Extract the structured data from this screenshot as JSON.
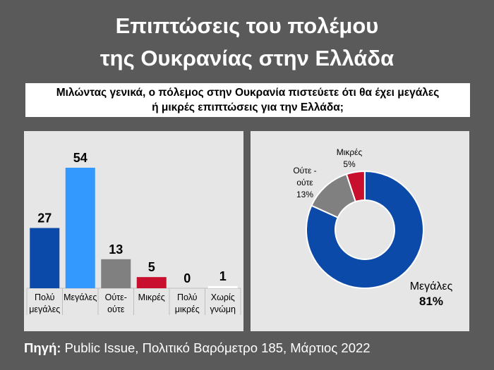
{
  "title_line1": "Επιπτώσεις του πολέμου",
  "title_line2": "της Ουκρανίας στην Ελλάδα",
  "question_line1": "Μιλώντας γενικά, ο πόλεμος στην Ουκρανία πιστεύετε ότι θα έχει μεγάλες",
  "question_line2": "ή μικρές επιπτώσεις για την Ελλάδα;",
  "source_label": "Πηγή:",
  "source_text": "Public Issue, Πολιτικό Βαρόμετρο 185, Μάρτιος 2022",
  "chart_data": [
    {
      "type": "bar",
      "categories": [
        [
          "Πολύ",
          "μεγάλες"
        ],
        [
          "Μεγάλες"
        ],
        [
          "Ούτε-",
          "ούτε"
        ],
        [
          "Μικρές"
        ],
        [
          "Πολύ",
          "μικρές"
        ],
        [
          "Χωρίς",
          "γνώμη"
        ]
      ],
      "values": [
        27,
        54,
        13,
        5,
        0,
        1
      ],
      "colors": [
        "#0b4aa8",
        "#3399ff",
        "#808080",
        "#c8102e",
        "#c8102e",
        "#ffffff"
      ],
      "ylim": [
        0,
        60
      ]
    },
    {
      "type": "pie",
      "style": "donut",
      "slices": [
        {
          "label": "Μεγάλες",
          "value": 81,
          "value_label": "81%",
          "color": "#0b4aa8"
        },
        {
          "label": "Ούτε -\nούτε",
          "value": 13,
          "value_label": "13%",
          "color": "#808080"
        },
        {
          "label": "Μικρές",
          "value": 5,
          "value_label": "5%",
          "color": "#c8102e"
        }
      ]
    }
  ]
}
